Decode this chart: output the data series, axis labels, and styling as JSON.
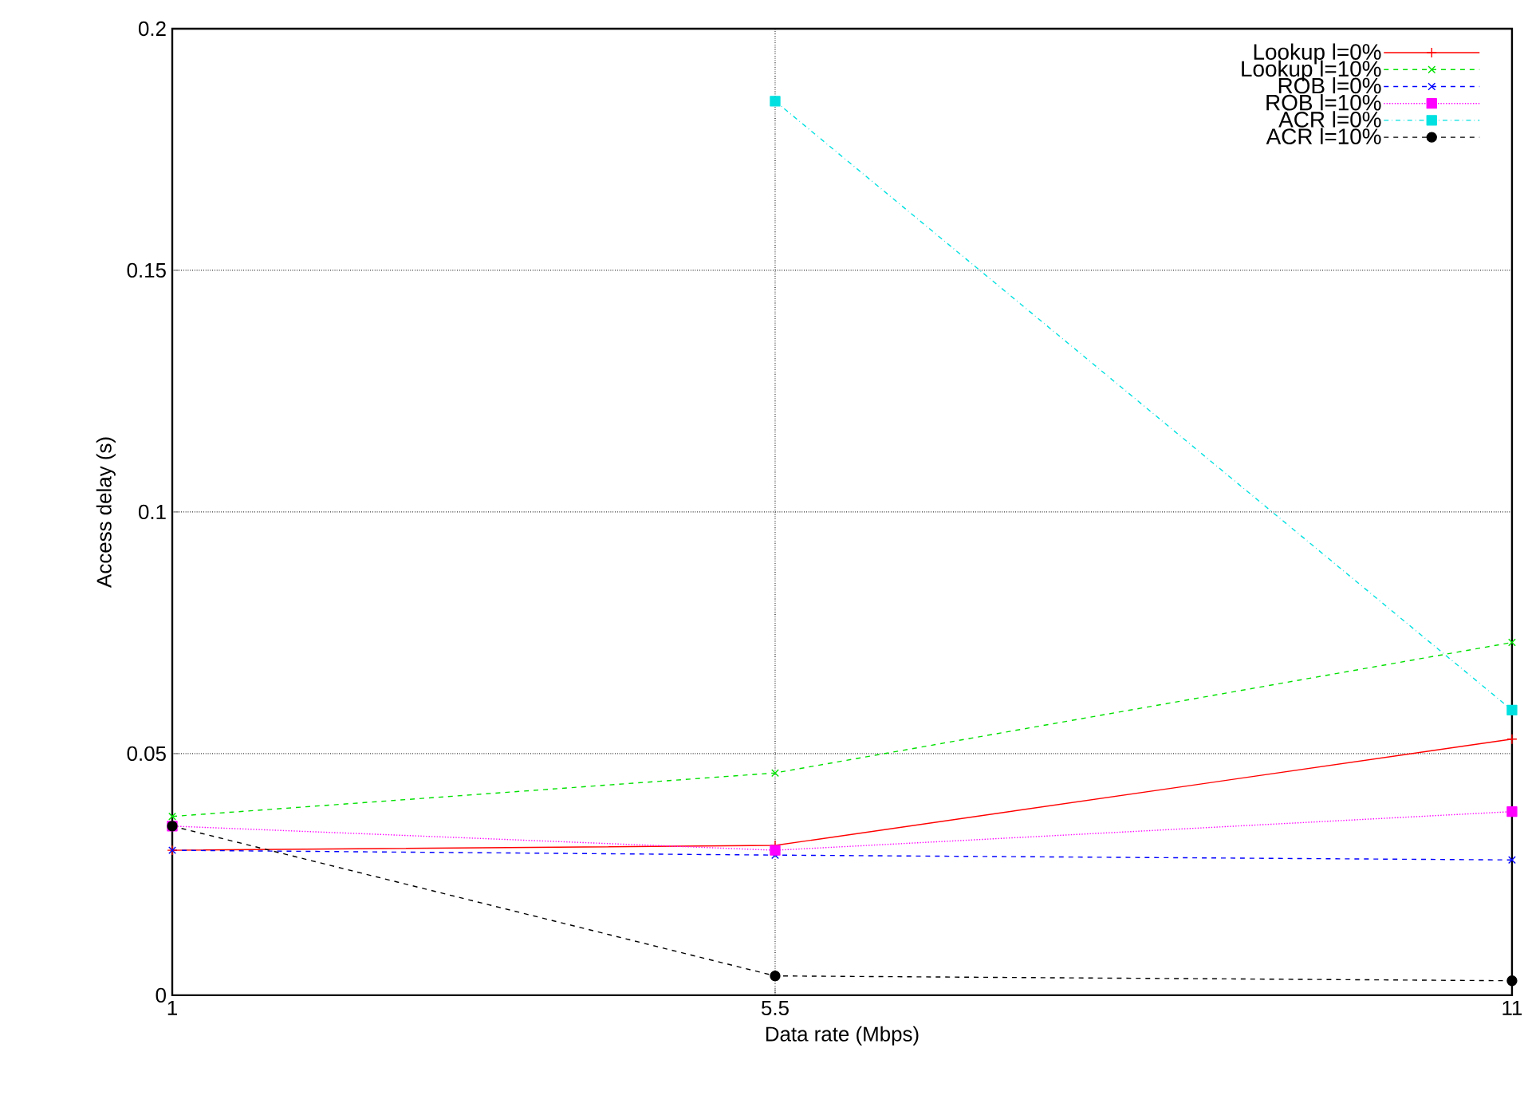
{
  "chart_data": {
    "type": "line",
    "xlabel": "Data rate (Mbps)",
    "ylabel": "Access delay (s)",
    "x": [
      1,
      5.5,
      11
    ],
    "xlim": [
      1,
      11
    ],
    "xticks": [
      1,
      5.5,
      11
    ],
    "ylim": [
      0,
      0.2
    ],
    "yticks": [
      0,
      0.05,
      0.1,
      0.15,
      0.2
    ],
    "grid": true,
    "legend": "top right",
    "series": [
      {
        "name": "Lookup l=0%",
        "color": "#ff0000",
        "marker": "plus",
        "line_style": "solid",
        "values": [
          0.03,
          0.031,
          0.053
        ]
      },
      {
        "name": "Lookup l=10%",
        "color": "#00e000",
        "marker": "cross",
        "line_style": "dashed",
        "values": [
          0.037,
          0.046,
          0.073
        ]
      },
      {
        "name": "ROB l=0%",
        "color": "#0000ff",
        "marker": "cross",
        "line_style": "dashed",
        "values": [
          0.03,
          0.029,
          0.028
        ]
      },
      {
        "name": "ROB l=10%",
        "color": "#ff00ff",
        "marker": "square",
        "line_style": "dotted",
        "values": [
          0.035,
          0.03,
          0.038
        ]
      },
      {
        "name": "ACR l=0%",
        "color": "#00e0e0",
        "marker": "square",
        "line_style": "dashdot",
        "values": [
          null,
          0.185,
          0.059
        ]
      },
      {
        "name": "ACR l=10%",
        "color": "#000000",
        "marker": "circle",
        "line_style": "dashed",
        "values": [
          0.035,
          0.004,
          0.003
        ]
      }
    ]
  }
}
